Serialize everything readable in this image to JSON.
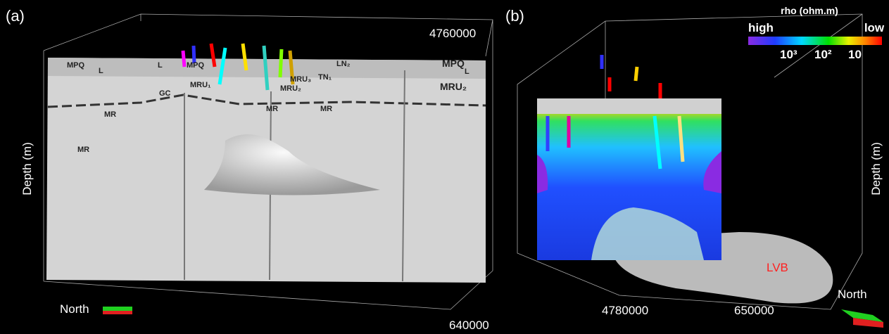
{
  "panels": [
    {
      "label": "(a)",
      "ticks": [
        "4760000",
        "640000"
      ],
      "depth_label": "Depth (m)",
      "north_label": "North",
      "units": [
        "MPQ",
        "L",
        "L",
        "MPQ",
        "GC",
        "MRU₁",
        "LN₂",
        "MRU₃",
        "TN₁",
        "MRU₂",
        "MPQ",
        "L",
        "MRU₂",
        "MR",
        "MR",
        "MR",
        "MR"
      ]
    },
    {
      "label": "(b)",
      "ticks": [
        "4780000",
        "650000"
      ],
      "depth_label": "Depth (m)",
      "north_label": "North",
      "body_label": "LVB",
      "colorbar": {
        "title": "rho (ohm.m)",
        "high": "high",
        "low": "low",
        "tick_labels": [
          "10³",
          "10²",
          "10"
        ]
      }
    }
  ]
}
